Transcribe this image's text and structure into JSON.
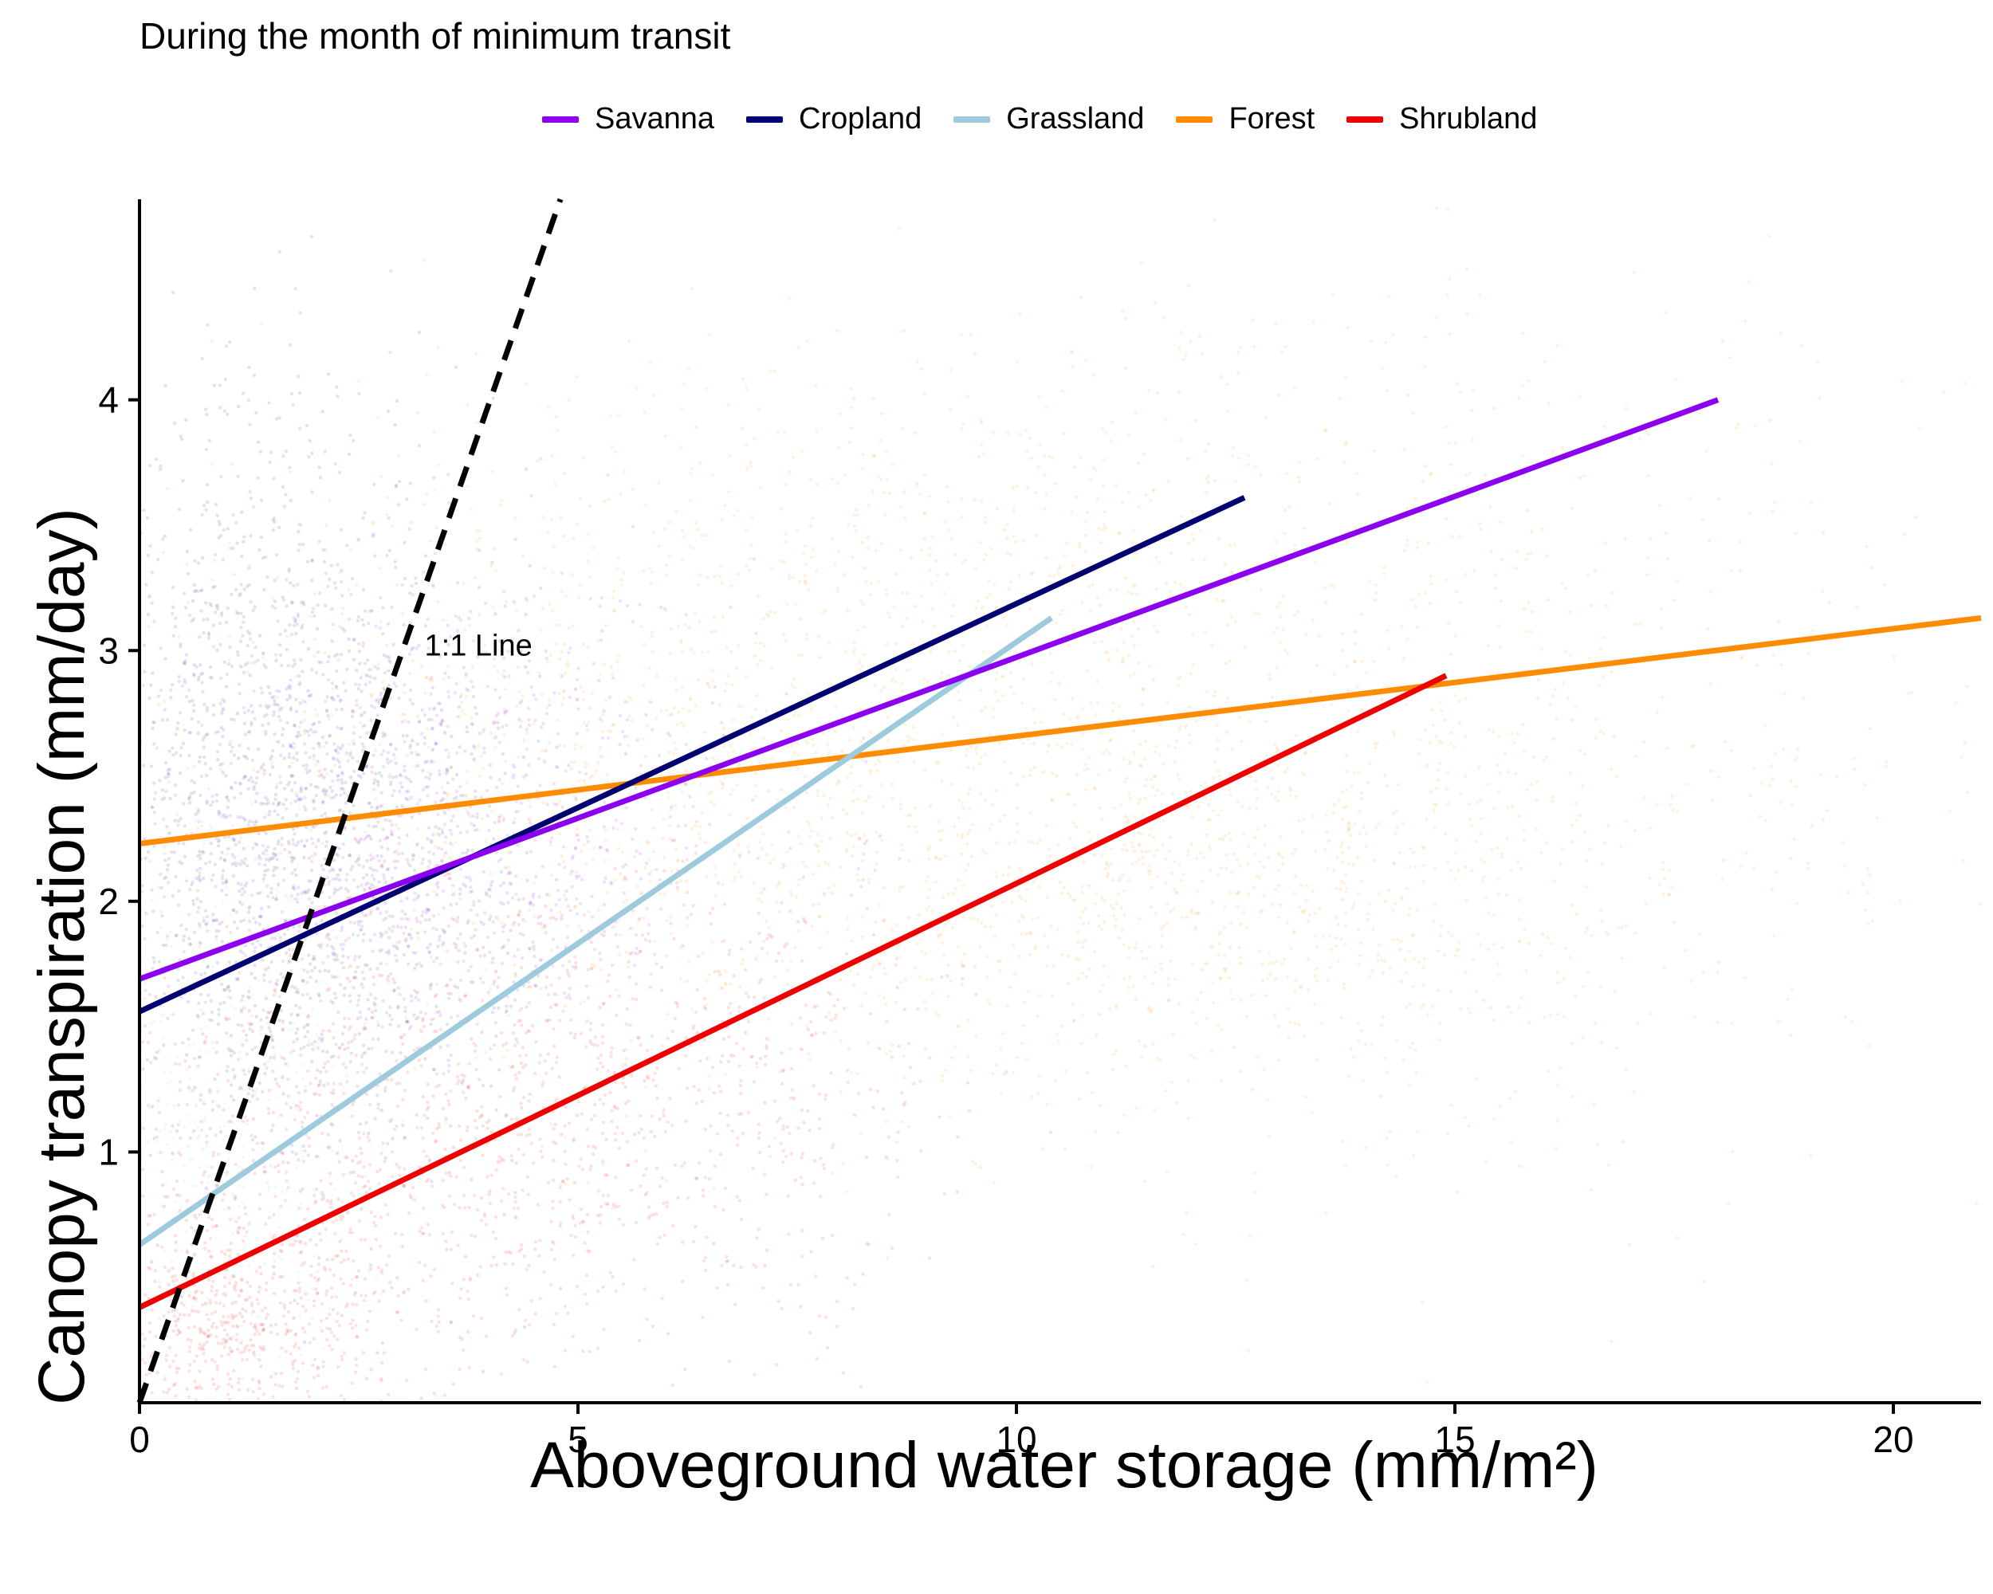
{
  "chart_data": {
    "type": "scatter",
    "title": "During the month of minimum transit",
    "xlabel": "Aboveground water storage (mm/m²)",
    "xlabel_main": "Aboveground water storage",
    "xlabel_unit": "(mm/m²)",
    "ylabel": "Canopy transpiration (mm/day)",
    "xlim": [
      0,
      21
    ],
    "ylim": [
      0,
      4.8
    ],
    "xticks": [
      0,
      5,
      10,
      15,
      20
    ],
    "yticks": [
      1,
      2,
      3,
      4
    ],
    "grid": false,
    "legend_position": "top",
    "series": [
      {
        "name": "Savanna",
        "color": "#8B00EE",
        "fit": [
          [
            0,
            1.69
          ],
          [
            18,
            4.0
          ]
        ]
      },
      {
        "name": "Cropland",
        "color": "#000070",
        "fit": [
          [
            0,
            1.56
          ],
          [
            12.6,
            3.61
          ]
        ]
      },
      {
        "name": "Grassland",
        "color": "#9DCBDD",
        "fit": [
          [
            0,
            0.63
          ],
          [
            10.4,
            3.13
          ]
        ]
      },
      {
        "name": "Forest",
        "color": "#FF8C00",
        "fit": [
          [
            0,
            2.23
          ],
          [
            21,
            3.13
          ]
        ]
      },
      {
        "name": "Shrubland",
        "color": "#EE0000",
        "fit": [
          [
            0,
            0.38
          ],
          [
            14.9,
            2.9
          ]
        ]
      }
    ],
    "reference_line": {
      "label": "1:1 Line",
      "points": [
        [
          0,
          0
        ],
        [
          4.8,
          4.8
        ]
      ],
      "color": "#000000",
      "style": "dashed"
    },
    "point_clouds": [
      {
        "series": "Forest",
        "color": "#FF8C00",
        "clusters": [
          [
            8.5,
            2.5,
            4.5,
            0.7,
            1500
          ],
          [
            12.5,
            2.0,
            2.5,
            0.4,
            700
          ],
          [
            9.5,
            3.6,
            4.0,
            0.4,
            400
          ],
          [
            15.5,
            2.6,
            3.5,
            0.9,
            500
          ],
          [
            5.5,
            2.6,
            2.5,
            0.5,
            500
          ]
        ]
      },
      {
        "series": "Cropland",
        "color": "#1A1A80",
        "clusters": [
          [
            2.0,
            2.2,
            1.2,
            0.7,
            1500
          ],
          [
            1.0,
            2.8,
            0.8,
            0.8,
            500
          ]
        ]
      },
      {
        "series": "Savanna",
        "color": "#8B00EE",
        "clusters": [
          [
            3.5,
            2.3,
            1.5,
            0.5,
            900
          ]
        ]
      },
      {
        "series": "Shrubland",
        "color": "#EE0000",
        "clusters": [
          [
            3.0,
            1.1,
            2.0,
            0.55,
            1200
          ],
          [
            1.0,
            0.3,
            0.9,
            0.25,
            600
          ],
          [
            6.5,
            1.3,
            1.5,
            0.5,
            500
          ]
        ]
      },
      {
        "series": "Grassland",
        "color": "#9DCBDD",
        "clusters": [
          [
            1.0,
            1.0,
            0.7,
            0.6,
            400
          ]
        ]
      }
    ]
  }
}
